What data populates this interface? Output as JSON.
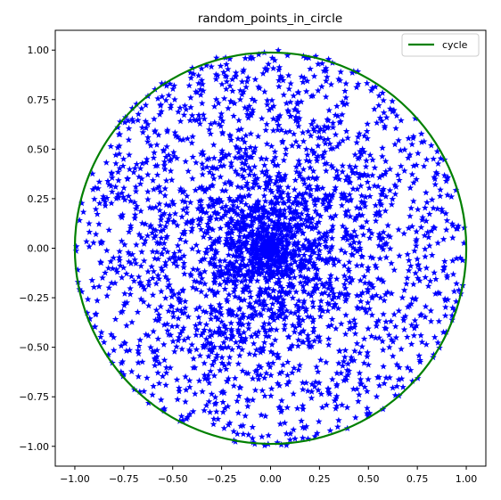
{
  "chart_data": {
    "type": "scatter",
    "title": "random_points_in_circle",
    "xlabel": "",
    "ylabel": "",
    "xlim": [
      -1.1,
      1.1
    ],
    "ylim": [
      -1.1,
      1.1
    ],
    "xticks": [
      -1.0,
      -0.75,
      -0.5,
      -0.25,
      0.0,
      0.25,
      0.5,
      0.75,
      1.0
    ],
    "yticks": [
      -1.0,
      -0.75,
      -0.5,
      -0.25,
      0.0,
      0.25,
      0.5,
      0.75,
      1.0
    ],
    "xtick_labels": [
      "−1.00",
      "−0.75",
      "−0.50",
      "−0.25",
      "0.00",
      "0.25",
      "0.50",
      "0.75",
      "1.00"
    ],
    "ytick_labels": [
      "−1.00",
      "−0.75",
      "−0.50",
      "−0.25",
      "0.00",
      "0.25",
      "0.50",
      "0.75",
      "1.00"
    ],
    "grid": false,
    "legend_position": "top-right",
    "series": [
      {
        "name": "cycle",
        "kind": "line",
        "shape": "circle",
        "center": [
          0,
          0
        ],
        "radius": 1.0,
        "color": "#008000"
      },
      {
        "kind": "scatter",
        "marker": "star",
        "color": "#0000ff",
        "distribution": "uniform radius, uniform angle, inside unit circle",
        "count": 3000
      }
    ]
  }
}
